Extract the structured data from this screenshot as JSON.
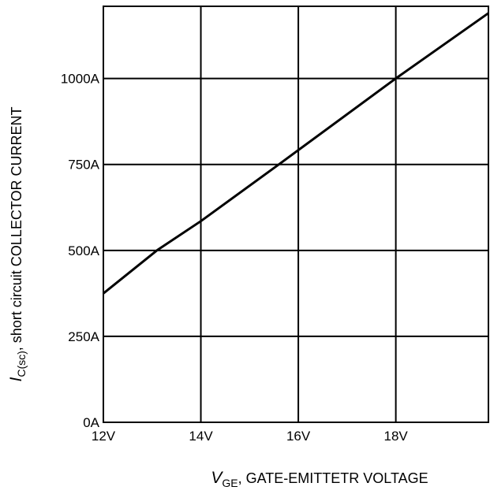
{
  "chart_data": {
    "type": "line",
    "title": "",
    "xlabel": {
      "symbol": "V",
      "subscript": "GE",
      "text": ", GATE-EMITTETR VOLTAGE"
    },
    "ylabel": {
      "symbol": "I",
      "subscript": "C(sc)",
      "text": ", short circuit COLLECTOR CURRENT"
    },
    "xlim": [
      12,
      19.9
    ],
    "ylim": [
      0,
      1210
    ],
    "x_ticks": [
      12,
      14,
      16,
      18
    ],
    "x_tick_labels": [
      "12V",
      "14V",
      "16V",
      "18V"
    ],
    "y_ticks": [
      0,
      250,
      500,
      750,
      1000
    ],
    "y_tick_labels": [
      "0A",
      "250A",
      "500A",
      "750A",
      "1000A"
    ],
    "grid": true,
    "legend": "none",
    "series": [
      {
        "x": [
          12,
          13.1,
          14,
          15.6,
          18,
          19.9
        ],
        "y": [
          375,
          500,
          585,
          750,
          1000,
          1190
        ]
      }
    ],
    "colors": {
      "line": "#000000",
      "grid": "#000000",
      "background": "#ffffff"
    }
  }
}
